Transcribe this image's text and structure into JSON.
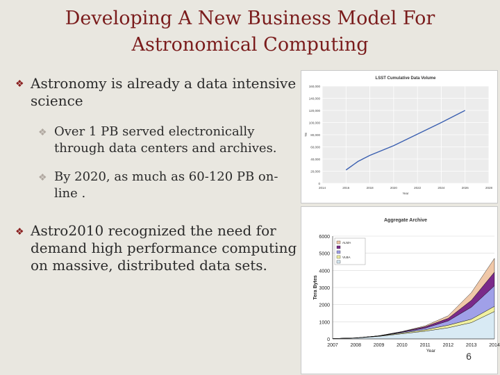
{
  "slide": {
    "title_line1": "Developing A New Business Model For",
    "title_line2": "Astronomical Computing",
    "bullets": [
      {
        "text_line1": "Astronomy is already a data intensive",
        "text_line2": "science"
      },
      {
        "text_line1": "Over 1 PB served electronically",
        "text_line2": "through data centers and archives."
      },
      {
        "text_line1": "By 2020, as much as 60-120 PB on-",
        "text_line2": "line ."
      },
      {
        "text_line1": "Astro2010 recognized the need for",
        "text_line2": "demand high performance computing",
        "text_line3": "on massive, distributed data sets."
      }
    ],
    "bullet_glyph": "❖",
    "page_number": "6",
    "colors": {
      "title": "#7a1c1c",
      "background": "#e9e7e0",
      "bullet_mark": "#8a2020"
    }
  },
  "chart_data": [
    {
      "type": "line",
      "title": "LSST Cumulative Data Volume",
      "xlabel": "Year",
      "ylabel": "TB",
      "x_ticks": [
        "2014",
        "2016",
        "2018",
        "2020",
        "2022",
        "2024",
        "2026",
        "2028"
      ],
      "y_ticks": [
        "0",
        "20,000",
        "40,000",
        "60,000",
        "80,000",
        "100,000",
        "120,000",
        "140,000",
        "160,000"
      ],
      "xlim": [
        2014,
        2028
      ],
      "ylim": [
        0,
        160000
      ],
      "grid": true,
      "series": [
        {
          "x": [
            2016,
            2017,
            2018,
            2020,
            2022,
            2024,
            2026
          ],
          "y": [
            22000,
            36000,
            46000,
            62000,
            81000,
            100000,
            120000
          ],
          "color": "#3a5fb0"
        }
      ]
    },
    {
      "type": "area",
      "title": "Aggregate Archive",
      "xlabel": "Year",
      "ylabel": "Tera Bytes",
      "x_ticks": [
        "2007",
        "2008",
        "2009",
        "2010",
        "2011",
        "2012",
        "2013",
        "2014"
      ],
      "y_ticks": [
        "0",
        "1000",
        "2000",
        "3000",
        "4000",
        "5000",
        "6000"
      ],
      "xlim": [
        2007,
        2014
      ],
      "ylim": [
        0,
        6000
      ],
      "legend_position": "top-left",
      "categories": [
        2007,
        2008,
        2009,
        2010,
        2011,
        2012,
        2013,
        2014
      ],
      "series": [
        {
          "name": "ALMA",
          "values": [
            0,
            0,
            0,
            10,
            50,
            150,
            450,
            800
          ],
          "color": "#f0c8a8"
        },
        {
          "name": "",
          "values": [
            0,
            0,
            5,
            30,
            80,
            150,
            400,
            800
          ],
          "color": "#7a2a8a"
        },
        {
          "name": "",
          "values": [
            0,
            0,
            5,
            40,
            100,
            250,
            700,
            1200
          ],
          "color": "#a0a0e8"
        },
        {
          "name": "VLBA",
          "values": [
            0,
            5,
            20,
            50,
            80,
            150,
            200,
            300
          ],
          "color": "#f0f0a0"
        },
        {
          "name": "",
          "values": [
            20,
            50,
            150,
            300,
            450,
            650,
            950,
            1600
          ],
          "color": "#d8eaf4"
        }
      ]
    }
  ]
}
